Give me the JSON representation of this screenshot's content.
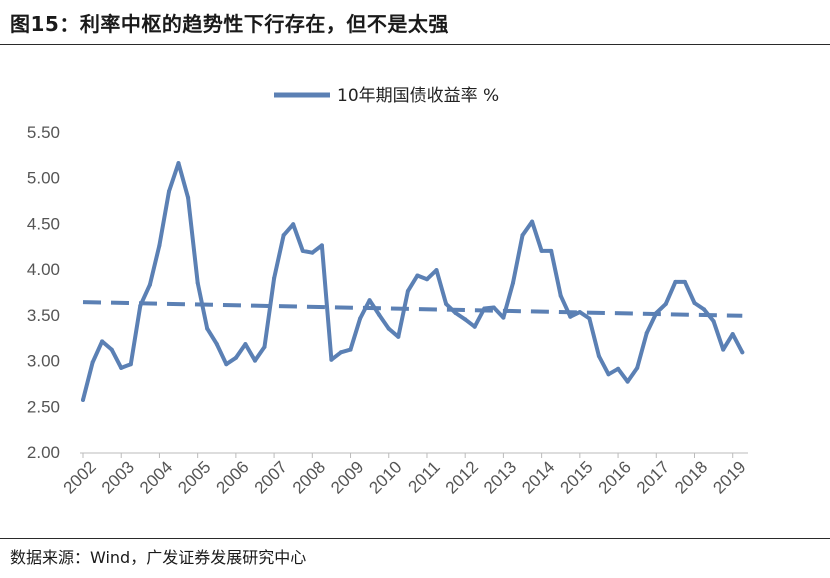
{
  "header": {
    "title": "图15：利率中枢的趋势性下行存在，但不是太强"
  },
  "footer": {
    "source": "数据来源：Wind，广发证券发展研究中心"
  },
  "chart_data": {
    "type": "line",
    "legend": {
      "label": "10年期国债收益率 %",
      "position": "top-center"
    },
    "y_ticks": [
      "5.50",
      "5.00",
      "4.50",
      "4.00",
      "3.50",
      "3.00",
      "2.50",
      "2.00"
    ],
    "ylim": [
      2.0,
      5.5
    ],
    "x_ticks": [
      "2002",
      "2003",
      "2004",
      "2005",
      "2006",
      "2007",
      "2008",
      "2009",
      "2010",
      "2011",
      "2012",
      "2013",
      "2014",
      "2015",
      "2016",
      "2017",
      "2018",
      "2019"
    ],
    "xlim": [
      2002.0,
      2019.4
    ],
    "grid": false,
    "colors": {
      "series": "#5b80b4"
    },
    "series": [
      {
        "type": "solid",
        "x": [
          2002.0,
          2002.25,
          2002.5,
          2002.75,
          2003.0,
          2003.25,
          2003.5,
          2003.75,
          2004.0,
          2004.25,
          2004.5,
          2004.75,
          2005.0,
          2005.25,
          2005.5,
          2005.75,
          2006.0,
          2006.25,
          2006.5,
          2006.75,
          2007.0,
          2007.25,
          2007.5,
          2007.75,
          2008.0,
          2008.25,
          2008.5,
          2008.75,
          2009.0,
          2009.25,
          2009.5,
          2009.75,
          2010.0,
          2010.25,
          2010.5,
          2010.75,
          2011.0,
          2011.25,
          2011.5,
          2011.75,
          2012.0,
          2012.25,
          2012.5,
          2012.75,
          2013.0,
          2013.25,
          2013.5,
          2013.75,
          2014.0,
          2014.25,
          2014.5,
          2014.75,
          2015.0,
          2015.25,
          2015.5,
          2015.75,
          2016.0,
          2016.25,
          2016.5,
          2016.75,
          2017.0,
          2017.25,
          2017.5,
          2017.75,
          2018.0,
          2018.25,
          2018.5,
          2018.75,
          2019.0,
          2019.25
        ],
        "values": [
          2.57,
          2.98,
          3.21,
          3.12,
          2.92,
          2.96,
          3.6,
          3.83,
          4.26,
          4.85,
          5.16,
          4.78,
          3.85,
          3.35,
          3.18,
          2.96,
          3.03,
          3.18,
          3.0,
          3.15,
          3.9,
          4.37,
          4.49,
          4.2,
          4.18,
          4.26,
          3.01,
          3.09,
          3.12,
          3.46,
          3.66,
          3.5,
          3.35,
          3.26,
          3.76,
          3.93,
          3.89,
          3.99,
          3.62,
          3.52,
          3.45,
          3.37,
          3.57,
          3.58,
          3.47,
          3.85,
          4.37,
          4.52,
          4.2,
          4.2,
          3.71,
          3.48,
          3.53,
          3.46,
          3.05,
          2.85,
          2.91,
          2.77,
          2.92,
          3.3,
          3.52,
          3.62,
          3.86,
          3.86,
          3.63,
          3.56,
          3.43,
          3.12,
          3.29,
          3.09
        ]
      },
      {
        "type": "dashed",
        "x": [
          2002.0,
          2019.25
        ],
        "values": [
          3.64,
          3.49
        ]
      }
    ]
  }
}
